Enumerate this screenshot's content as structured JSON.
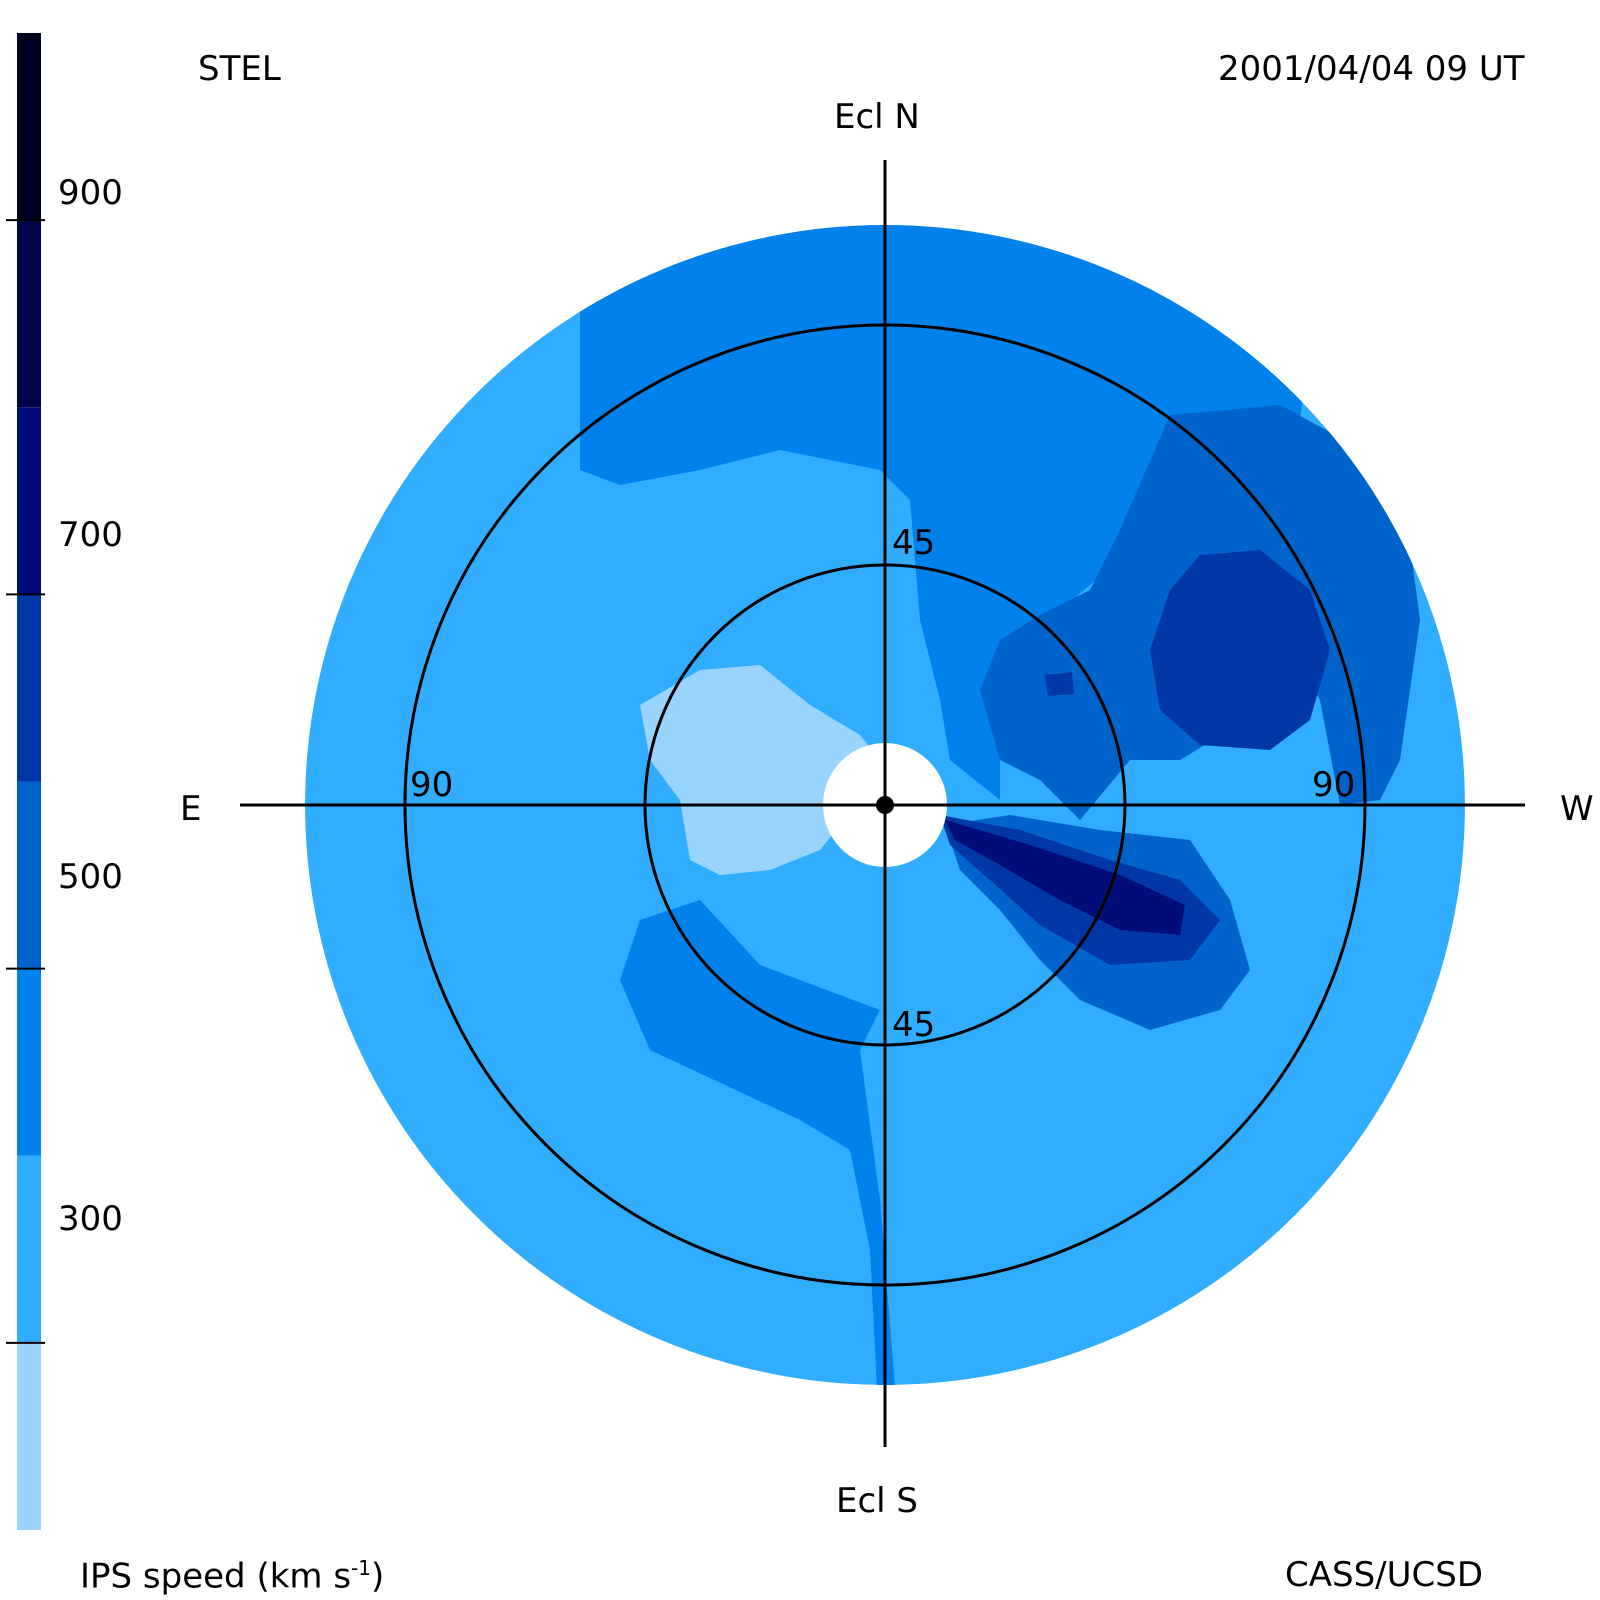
{
  "header": {
    "observatory": "STEL",
    "timestamp": "2001/04/04 09 UT"
  },
  "footer": {
    "colorbar_title": "IPS speed (km s",
    "colorbar_title_exponent": "-1",
    "colorbar_title_close": ")",
    "credit": "CASS/UCSD"
  },
  "directions": {
    "north": "Ecl N",
    "south": "Ecl S",
    "east": "E",
    "west": "W"
  },
  "ring_labels": {
    "inner_top": "45",
    "inner_bottom": "45",
    "outer_left": "90",
    "outer_right": "90"
  },
  "colorbar": {
    "min": 200,
    "max": 1000,
    "ticks": [
      {
        "value": 900,
        "label": "900"
      },
      {
        "value": 700,
        "label": "700"
      },
      {
        "value": 500,
        "label": "500"
      },
      {
        "value": 300,
        "label": "300"
      }
    ],
    "levels": [
      {
        "from": 200,
        "to": 300,
        "color": "#99d4ff"
      },
      {
        "from": 300,
        "to": 400,
        "color": "#30adff"
      },
      {
        "from": 400,
        "to": 500,
        "color": "#0081eb"
      },
      {
        "from": 500,
        "to": 600,
        "color": "#0063cc"
      },
      {
        "from": 600,
        "to": 700,
        "color": "#0037a6"
      },
      {
        "from": 700,
        "to": 800,
        "color": "#000d78"
      },
      {
        "from": 800,
        "to": 900,
        "color": "#000548"
      },
      {
        "from": 900,
        "to": 1000,
        "color": "#00001f"
      }
    ]
  }
}
